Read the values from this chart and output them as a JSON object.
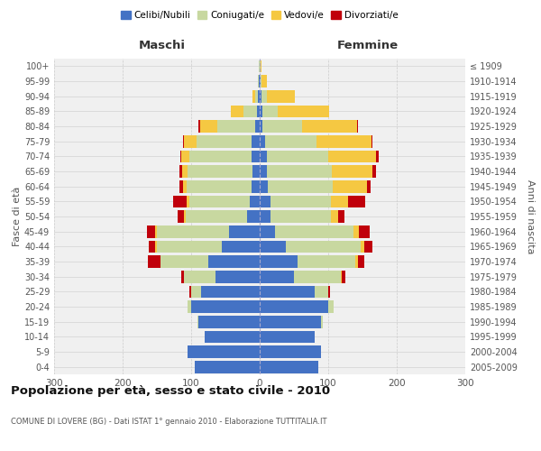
{
  "age_groups": [
    "0-4",
    "5-9",
    "10-14",
    "15-19",
    "20-24",
    "25-29",
    "30-34",
    "35-39",
    "40-44",
    "45-49",
    "50-54",
    "55-59",
    "60-64",
    "65-69",
    "70-74",
    "75-79",
    "80-84",
    "85-89",
    "90-94",
    "95-99",
    "100+"
  ],
  "birth_years": [
    "2005-2009",
    "2000-2004",
    "1995-1999",
    "1990-1994",
    "1985-1989",
    "1980-1984",
    "1975-1979",
    "1970-1974",
    "1965-1969",
    "1960-1964",
    "1955-1959",
    "1950-1954",
    "1945-1949",
    "1940-1944",
    "1935-1939",
    "1930-1934",
    "1925-1929",
    "1920-1924",
    "1915-1919",
    "1910-1914",
    "≤ 1909"
  ],
  "male": {
    "celibi": [
      95,
      105,
      80,
      90,
      100,
      85,
      65,
      75,
      55,
      45,
      18,
      15,
      12,
      10,
      12,
      12,
      7,
      4,
      2,
      1,
      0
    ],
    "coniugati": [
      0,
      0,
      0,
      1,
      5,
      15,
      45,
      70,
      95,
      105,
      90,
      88,
      95,
      95,
      90,
      80,
      55,
      20,
      4,
      2,
      1
    ],
    "vedovi": [
      0,
      0,
      0,
      0,
      0,
      0,
      0,
      0,
      2,
      2,
      2,
      3,
      5,
      8,
      12,
      18,
      25,
      18,
      5,
      0,
      0
    ],
    "divorziati": [
      0,
      0,
      0,
      0,
      0,
      2,
      5,
      18,
      10,
      12,
      10,
      20,
      5,
      4,
      2,
      2,
      2,
      0,
      0,
      0,
      0
    ]
  },
  "female": {
    "nubili": [
      85,
      90,
      80,
      90,
      100,
      80,
      50,
      55,
      38,
      22,
      16,
      16,
      12,
      10,
      10,
      8,
      4,
      4,
      3,
      1,
      0
    ],
    "coniugate": [
      0,
      0,
      0,
      2,
      8,
      20,
      68,
      85,
      110,
      115,
      88,
      88,
      95,
      95,
      90,
      75,
      58,
      22,
      8,
      2,
      1
    ],
    "vedove": [
      0,
      0,
      0,
      0,
      0,
      0,
      2,
      3,
      5,
      8,
      10,
      25,
      50,
      60,
      70,
      80,
      80,
      75,
      40,
      8,
      2
    ],
    "divorziate": [
      0,
      0,
      0,
      0,
      0,
      2,
      5,
      10,
      12,
      15,
      10,
      25,
      5,
      5,
      4,
      2,
      2,
      0,
      0,
      0,
      0
    ]
  },
  "colors": {
    "celibi": "#4472c4",
    "coniugati": "#c8d8a0",
    "vedovi": "#f5c842",
    "divorziati": "#c0000b"
  },
  "title": "Popolazione per età, sesso e stato civile - 2010",
  "subtitle": "COMUNE DI LOVERE (BG) - Dati ISTAT 1° gennaio 2010 - Elaborazione TUTTITALIA.IT",
  "xlabel_left": "Maschi",
  "xlabel_right": "Femmine",
  "ylabel_left": "Fasce di età",
  "ylabel_right": "Anni di nascita",
  "xlim": 300,
  "bg_color": "#ffffff",
  "plot_bg": "#f0f0f0"
}
